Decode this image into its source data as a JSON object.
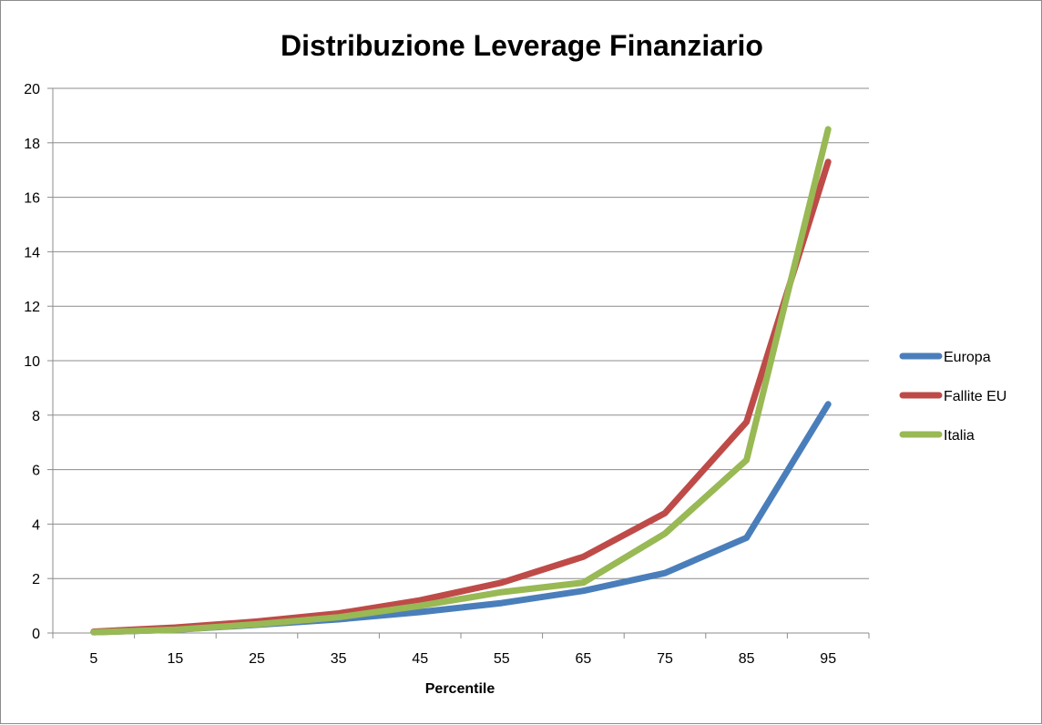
{
  "chart_data": {
    "type": "line",
    "title": "Distribuzione Leverage Finanziario",
    "xlabel": "Percentile",
    "ylabel": "",
    "categories": [
      "5",
      "15",
      "25",
      "35",
      "45",
      "55",
      "65",
      "75",
      "85",
      "95"
    ],
    "ylim": [
      0,
      20
    ],
    "yticks": [
      "0",
      "2",
      "4",
      "6",
      "8",
      "10",
      "12",
      "14",
      "16",
      "18",
      "20"
    ],
    "grid": "horizontal",
    "legend_position": "right",
    "series": [
      {
        "name": "Europa",
        "color": "#4a7ebb",
        "values": [
          0.03,
          0.12,
          0.3,
          0.5,
          0.77,
          1.1,
          1.55,
          2.2,
          3.5,
          8.4
        ]
      },
      {
        "name": "Fallite EU",
        "color": "#be4b48",
        "values": [
          0.05,
          0.2,
          0.42,
          0.72,
          1.2,
          1.85,
          2.8,
          4.4,
          7.75,
          17.3
        ]
      },
      {
        "name": "Italia",
        "color": "#98b954",
        "values": [
          0.03,
          0.12,
          0.32,
          0.58,
          1.0,
          1.5,
          1.85,
          3.65,
          6.35,
          18.5
        ]
      }
    ]
  }
}
